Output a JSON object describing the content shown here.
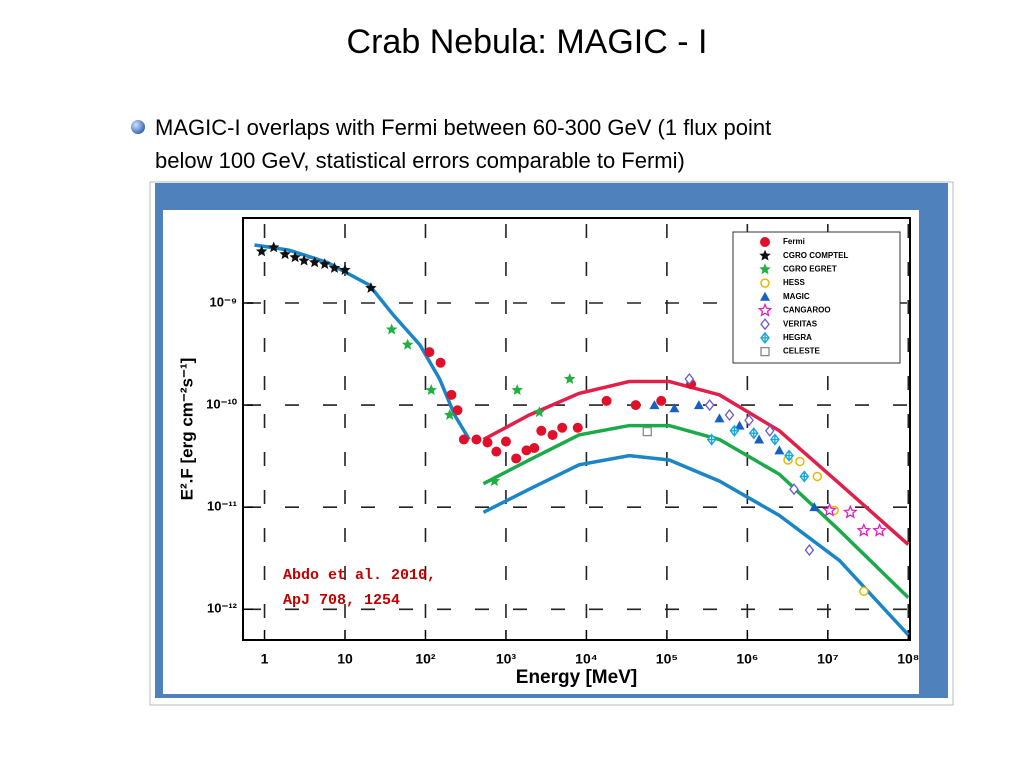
{
  "slide": {
    "title": "Crab Nebula: MAGIC - I",
    "bullet": [
      "MAGIC-I overlaps with Fermi between 60-300 GeV (1 flux point",
      "below 100 GeV, statistical errors comparable to Fermi)"
    ]
  },
  "chart_data": {
    "type": "scatter",
    "xlabel": "Energy [MeV]",
    "ylabel": "E².F [erg cm⁻²s⁻¹]",
    "annotation": [
      "Abdo et al. 2010,",
      "ApJ 708, 1254"
    ],
    "xscale": "log",
    "yscale": "log",
    "grid": true,
    "legend": "upper right",
    "xlim": [
      0.54,
      105000000
    ],
    "ylim": [
      5e-13,
      6.8e-09
    ],
    "xticks": [
      1,
      10,
      {
        "value": 100,
        "label": "10²"
      },
      {
        "value": 1000,
        "label": "10³"
      },
      {
        "value": 10000,
        "label": "10⁴"
      },
      {
        "value": 100000,
        "label": "10⁵"
      },
      {
        "value": 1000000,
        "label": "10⁶"
      },
      {
        "value": 10000000,
        "label": "10⁷"
      },
      {
        "value": 100000000,
        "label": "10⁸"
      }
    ],
    "yticks": [
      {
        "value": 1e-12,
        "label": "10⁻¹²"
      },
      {
        "value": 1e-11,
        "label": "10⁻¹¹"
      },
      {
        "value": 1e-10,
        "label": "10⁻¹⁰"
      },
      {
        "value": 1e-09,
        "label": "10⁻⁹"
      }
    ],
    "series": [
      {
        "name": "Fermi",
        "color": "#e0102a",
        "marker": "circle",
        "x": [
          112,
          154,
          210,
          250,
          300,
          430,
          590,
          760,
          1000,
          1340,
          1800,
          2250,
          2750,
          3800,
          5000,
          7800,
          17800,
          41000,
          85000,
          200000
        ],
        "values": [
          3.3e-10,
          2.6e-10,
          1.26e-10,
          8.9e-11,
          4.6e-11,
          4.6e-11,
          4.3e-11,
          3.5e-11,
          4.4e-11,
          3e-11,
          3.6e-11,
          3.8e-11,
          5.6e-11,
          5.1e-11,
          6e-11,
          6e-11,
          1.1e-10,
          1e-10,
          1.1e-10,
          1.6e-10
        ]
      },
      {
        "name": "CGRO COMPTEL",
        "color": "#111111",
        "marker": "star",
        "x": [
          0.92,
          1.3,
          1.8,
          2.4,
          3.1,
          4.2,
          5.6,
          7.4,
          10,
          21
        ],
        "values": [
          3.2e-09,
          3.5e-09,
          3e-09,
          2.8e-09,
          2.6e-09,
          2.5e-09,
          2.4e-09,
          2.2e-09,
          2.1e-09,
          1.4e-09
        ]
      },
      {
        "name": "CGRO EGRET",
        "color": "#20b040",
        "marker": "star",
        "x": [
          38,
          60,
          118,
          200,
          720,
          1380,
          2600,
          6200
        ],
        "values": [
          5.5e-10,
          3.9e-10,
          1.4e-10,
          8e-11,
          1.8e-11,
          1.4e-10,
          8.5e-11,
          1.8e-10
        ]
      },
      {
        "name": "HESS",
        "color": "#e8b800",
        "marker": "open-circle",
        "x": [
          3200000,
          4500000,
          7400000,
          12000000,
          28000000
        ],
        "values": [
          2.9e-11,
          2.8e-11,
          2e-11,
          9.3e-12,
          1.5e-12
        ]
      },
      {
        "name": "MAGIC",
        "color": "#1560c0",
        "marker": "triangle",
        "x": [
          70000,
          124000,
          250000,
          450000,
          800000,
          1400000,
          2500000,
          6800000
        ],
        "values": [
          1e-10,
          9.3e-11,
          1e-10,
          7.4e-11,
          6.3e-11,
          4.6e-11,
          3.6e-11,
          1e-11
        ]
      },
      {
        "name": "CANGAROO",
        "color": "#e020c0",
        "marker": "open-star",
        "x": [
          10500000,
          19000000,
          28000000,
          44000000
        ],
        "values": [
          9.3e-12,
          8.9e-12,
          5.9e-12,
          5.9e-12
        ]
      },
      {
        "name": "VERITAS",
        "color": "#6a5acd",
        "marker": "open-diamond",
        "x": [
          190000,
          340000,
          600000,
          1050000,
          1900000,
          3800000,
          5900000
        ],
        "values": [
          1.8e-10,
          1e-10,
          8e-11,
          7.1e-11,
          5.6e-11,
          1.5e-11,
          3.8e-12
        ]
      },
      {
        "name": "HEGRA",
        "color": "#18a8d8",
        "marker": "cross-diamond",
        "x": [
          360000,
          690000,
          1200000,
          2200000,
          3300000,
          5100000
        ],
        "values": [
          4.6e-11,
          5.6e-11,
          5.3e-11,
          4.6e-11,
          3.2e-11,
          2e-11
        ]
      },
      {
        "name": "CELESTE",
        "color": "#888888",
        "marker": "open-square",
        "x": [
          57000
        ],
        "values": [
          5.5e-11
        ]
      }
    ],
    "curves": [
      {
        "color": "#1a86c8",
        "x": [
          0.75,
          2,
          6,
          20,
          40,
          85,
          150,
          230,
          350
        ],
        "values": [
          3.7e-09,
          3.3e-09,
          2.5e-09,
          1.5e-09,
          7.6e-10,
          3.9e-10,
          1.8e-10,
          8e-11,
          4.6e-11
        ]
      },
      {
        "color": "#1a86c8",
        "x": [
          525,
          1950,
          8100,
          34000,
          107000,
          450000,
          2500000,
          14000000,
          100000000
        ],
        "values": [
          8.9e-12,
          1.5e-11,
          2.6e-11,
          3.2e-11,
          2.9e-11,
          1.8e-11,
          8.3e-12,
          3e-12,
          5.6e-13
        ]
      },
      {
        "color": "#1aaa4a",
        "x": [
          525,
          1950,
          8100,
          34000,
          107000,
          450000,
          2500000,
          14000000,
          100000000
        ],
        "values": [
          1.7e-11,
          2.9e-11,
          5.1e-11,
          6.3e-11,
          6.3e-11,
          4.6e-11,
          2.1e-11,
          5.9e-12,
          1.3e-12
        ]
      },
      {
        "color": "#e0204a",
        "x": [
          525,
          1950,
          8100,
          34000,
          107000,
          450000,
          2500000,
          14000000,
          100000000
        ],
        "values": [
          4.6e-11,
          8e-11,
          1.3e-10,
          1.7e-10,
          1.7e-10,
          1.26e-10,
          5.6e-11,
          1.7e-11,
          4.3e-12
        ]
      }
    ]
  }
}
